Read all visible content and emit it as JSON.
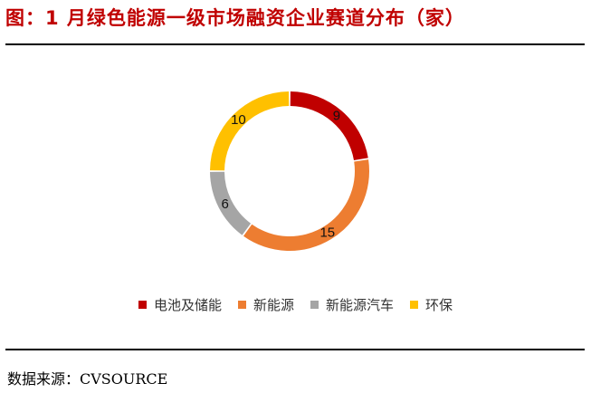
{
  "header": {
    "title": "图：1 月绿色能源一级市场融资企业赛道分布（家）"
  },
  "footer": {
    "source": "数据来源：CVSOURCE"
  },
  "chart_data": {
    "type": "pie",
    "donut": true,
    "title": "图：1 月绿色能源一级市场融资企业赛道分布（家）",
    "unit": "家",
    "categories": [
      "电池及储能",
      "新能源",
      "新能源汽车",
      "环保"
    ],
    "values": [
      9,
      15,
      6,
      10
    ],
    "colors": [
      "#c00000",
      "#ed7d31",
      "#a5a5a5",
      "#ffc000"
    ],
    "legend_position": "bottom",
    "data_labels": true
  }
}
